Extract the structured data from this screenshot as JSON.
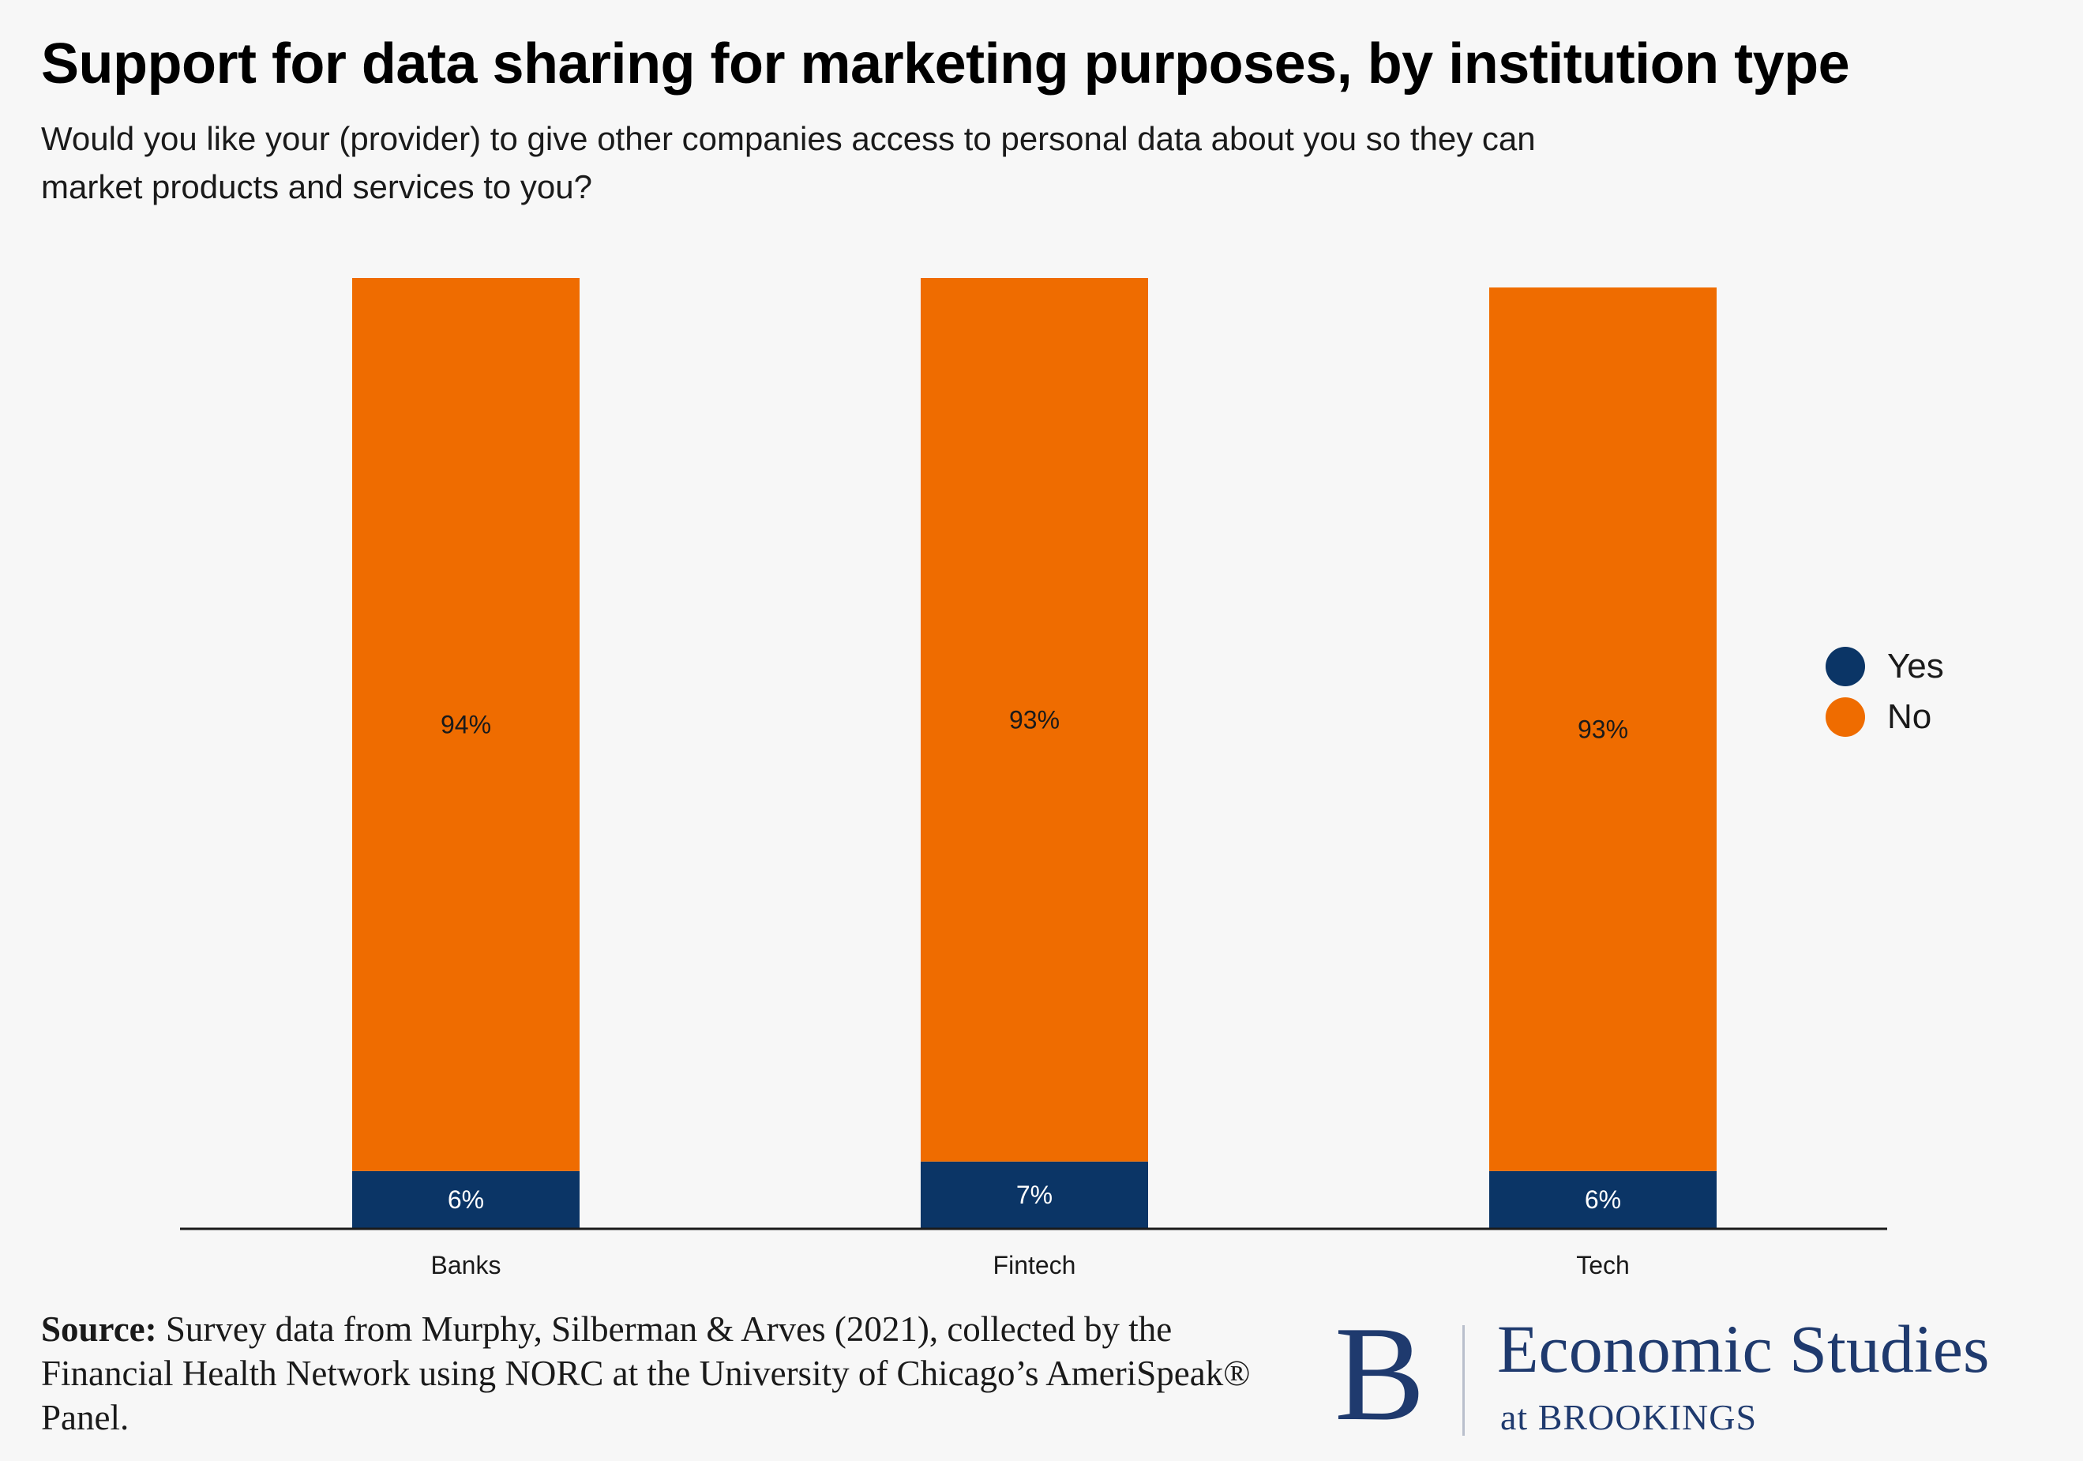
{
  "title": "Support for data sharing for marketing purposes, by institution type",
  "subtitle": "Would you like your (provider) to give other companies access to personal data about you so they can market products and services to you?",
  "colors": {
    "yes": "#0b3566",
    "no": "#ef6c00",
    "axis": "#1a1a1a"
  },
  "chart_data": {
    "type": "bar",
    "stacked": true,
    "title": "Support for data sharing for marketing purposes, by institution type",
    "categories": [
      "Banks",
      "Fintech",
      "Tech"
    ],
    "series": [
      {
        "name": "Yes",
        "values": [
          6,
          7,
          6
        ],
        "labels": [
          "6%",
          "7%",
          "6%"
        ]
      },
      {
        "name": "No",
        "values": [
          94,
          93,
          93
        ],
        "labels": [
          "94%",
          "93%",
          "93%"
        ]
      }
    ],
    "xlabel": "",
    "ylabel": "",
    "ylim": [
      0,
      100
    ],
    "grid": false,
    "legend": "right"
  },
  "legend": {
    "items": [
      {
        "label": "Yes",
        "color": "#0b3566"
      },
      {
        "label": "No",
        "color": "#ef6c00"
      }
    ]
  },
  "source": {
    "label": "Source:",
    "text": " Survey data from Murphy, Silberman & Arves (2021), collected by the Financial Health Network using NORC at the University of Chicago’s AmeriSpeak® Panel."
  },
  "logo": {
    "letter": "B",
    "name": "Economic Studies",
    "sub": "at BROOKINGS"
  }
}
